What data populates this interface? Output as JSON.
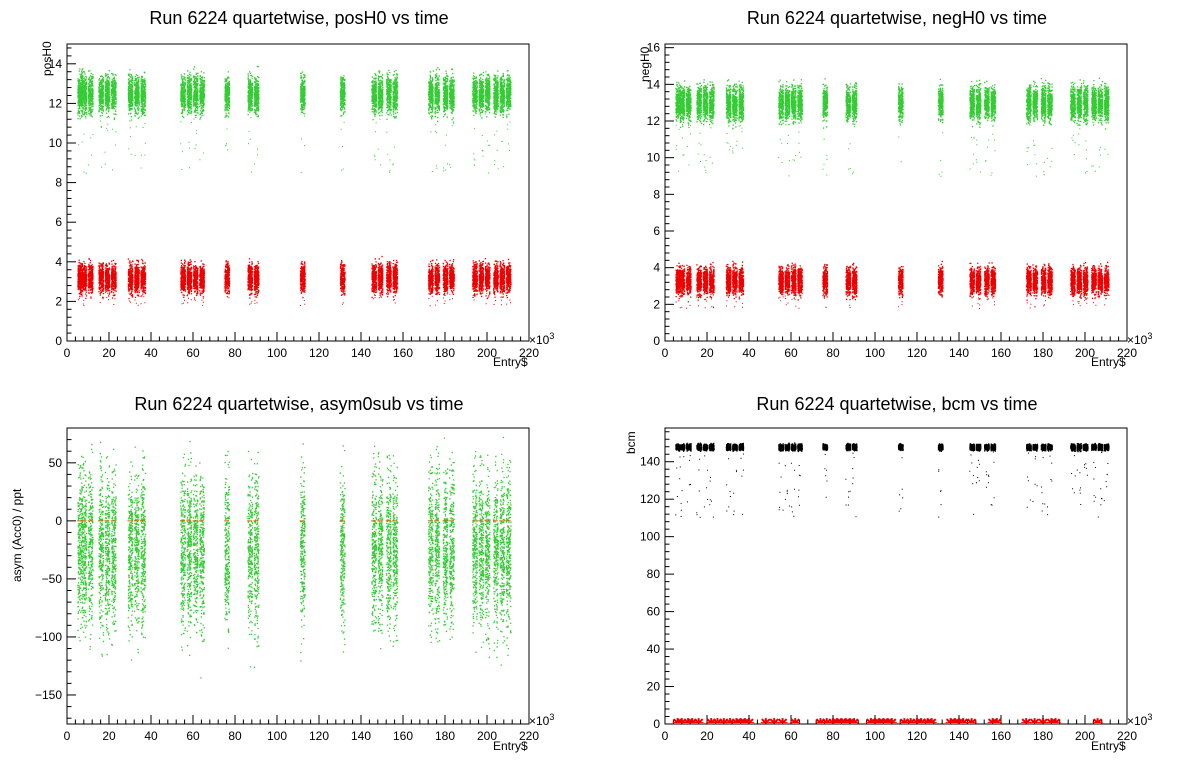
{
  "chart_data": [
    {
      "type": "scatter",
      "title": "Run 6224 quartetwise, posH0 vs time",
      "ylabel": "posH0",
      "xlabel": "Entry$",
      "x_exponent": "3",
      "xlim": [
        0,
        220
      ],
      "ylim": [
        0,
        15
      ],
      "xticks": [
        0,
        20,
        40,
        60,
        80,
        100,
        120,
        140,
        160,
        180,
        200,
        220
      ],
      "yticks": [
        0,
        2,
        4,
        6,
        8,
        10,
        12,
        14
      ],
      "clusters_x": [
        6,
        8,
        11,
        16,
        19,
        22,
        30,
        33,
        36,
        55,
        58,
        61,
        64,
        76,
        87,
        90,
        112,
        131,
        146,
        149,
        153,
        156,
        173,
        176,
        180,
        183,
        194,
        197,
        200,
        204,
        207,
        210
      ],
      "series": [
        {
          "color": "#33cc33",
          "center": 12.5,
          "spread": 0.9,
          "dropout_low": 8.5
        },
        {
          "color": "#ee0000",
          "center": 3.2,
          "spread": 0.7,
          "dropout_low": 1.8
        }
      ]
    },
    {
      "type": "scatter",
      "title": "Run 6224 quartetwise, negH0 vs time",
      "ylabel": "negH0",
      "xlabel": "Entry$",
      "x_exponent": "3",
      "xlim": [
        0,
        220
      ],
      "ylim": [
        0,
        16.2
      ],
      "xticks": [
        0,
        20,
        40,
        60,
        80,
        100,
        120,
        140,
        160,
        180,
        200,
        220
      ],
      "yticks": [
        0,
        2,
        4,
        6,
        8,
        10,
        12,
        14,
        16
      ],
      "clusters_x": [
        6,
        8,
        11,
        16,
        19,
        22,
        30,
        33,
        36,
        55,
        58,
        61,
        64,
        76,
        87,
        90,
        112,
        131,
        146,
        149,
        153,
        156,
        173,
        176,
        180,
        183,
        194,
        197,
        200,
        204,
        207,
        210
      ],
      "series": [
        {
          "color": "#33cc33",
          "center": 13.0,
          "spread": 0.9,
          "dropout_low": 9.0
        },
        {
          "color": "#ee0000",
          "center": 3.3,
          "spread": 0.7,
          "dropout_low": 1.8
        }
      ]
    },
    {
      "type": "scatter",
      "title": "Run 6224 quartetwise, asym0sub vs time",
      "ylabel": "asym (Acc0) / ppt",
      "xlabel": "Entry$",
      "x_exponent": "3",
      "xlim": [
        0,
        220
      ],
      "ylim": [
        -175,
        80
      ],
      "xticks": [
        0,
        20,
        40,
        60,
        80,
        100,
        120,
        140,
        160,
        180,
        200,
        220
      ],
      "yticks": [
        -150,
        -100,
        -50,
        0,
        50
      ],
      "clusters_x": [
        6,
        8,
        11,
        16,
        19,
        22,
        30,
        33,
        36,
        55,
        58,
        61,
        64,
        76,
        87,
        90,
        112,
        131,
        146,
        149,
        153,
        156,
        173,
        176,
        180,
        183,
        194,
        197,
        200,
        204,
        207,
        210
      ],
      "series": [
        {
          "color": "#33cc33",
          "center": -25,
          "spread": 65
        },
        {
          "color": "#cc6600",
          "center": 0,
          "spread": 0
        }
      ]
    },
    {
      "type": "scatter",
      "title": "Run 6224 quartetwise, bcm vs time",
      "ylabel": "bcm",
      "xlabel": "Entry$",
      "x_exponent": "3",
      "xlim": [
        0,
        220
      ],
      "ylim": [
        0,
        158
      ],
      "xticks": [
        0,
        20,
        40,
        60,
        80,
        100,
        120,
        140,
        160,
        180,
        200,
        220
      ],
      "yticks": [
        0,
        20,
        40,
        60,
        80,
        100,
        120,
        140
      ],
      "clusters_x": [
        6,
        8,
        11,
        16,
        19,
        22,
        30,
        33,
        36,
        55,
        58,
        61,
        64,
        76,
        87,
        90,
        112,
        131,
        146,
        149,
        153,
        156,
        173,
        176,
        180,
        183,
        194,
        197,
        200,
        204,
        207,
        210
      ],
      "series": [
        {
          "color": "#000000",
          "center": 148,
          "spread": 1.5,
          "dropout_low": 110
        },
        {
          "color": "#ee0000",
          "center": 0.5,
          "spread": 0,
          "marker": "star",
          "x": [
            6,
            8,
            11,
            13,
            16,
            22,
            25,
            28,
            31,
            34,
            36,
            38,
            40,
            48,
            52,
            56,
            62,
            74,
            77,
            80,
            82,
            84,
            86,
            88,
            90,
            98,
            100,
            102,
            104,
            106,
            108,
            114,
            117,
            120,
            122,
            125,
            127,
            136,
            138,
            140,
            142,
            146,
            156,
            158,
            172,
            176,
            180,
            184,
            186,
            206
          ]
        }
      ]
    }
  ]
}
